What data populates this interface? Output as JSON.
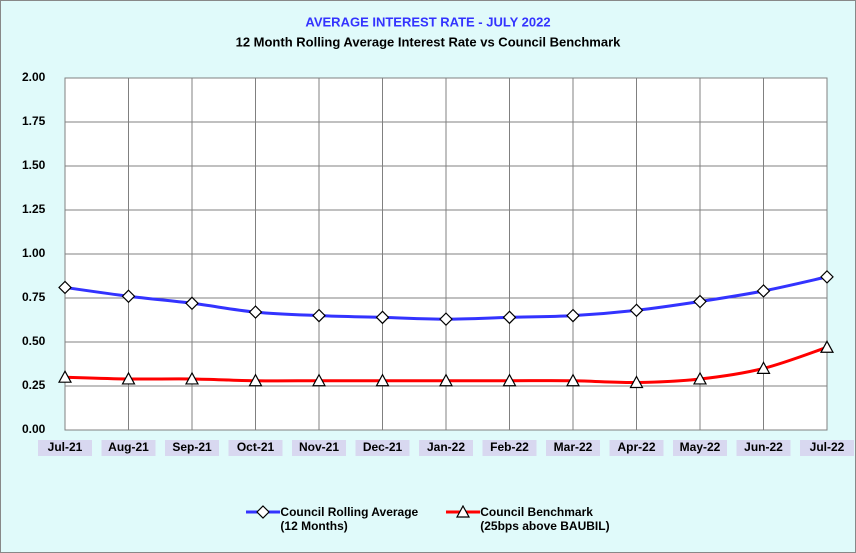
{
  "chart_data": {
    "type": "line",
    "title": "AVERAGE INTEREST  RATE - JULY 2022",
    "subtitle": "12 Month Rolling Average Interest Rate vs Council Benchmark",
    "categories": [
      "Jul-21",
      "Aug-21",
      "Sep-21",
      "Oct-21",
      "Nov-21",
      "Dec-21",
      "Jan-22",
      "Feb-22",
      "Mar-22",
      "Apr-22",
      "May-22",
      "Jun-22",
      "Jul-22"
    ],
    "series": [
      {
        "name": "Council Rolling Average\n(12 Months)",
        "color": "#3333ff",
        "marker": "diamond",
        "values": [
          0.81,
          0.76,
          0.72,
          0.67,
          0.65,
          0.64,
          0.63,
          0.64,
          0.65,
          0.68,
          0.73,
          0.79,
          0.87
        ]
      },
      {
        "name": "Council Benchmark\n(25bps above BAUBIL)",
        "color": "#ff0000",
        "marker": "triangle",
        "values": [
          0.3,
          0.29,
          0.29,
          0.28,
          0.28,
          0.28,
          0.28,
          0.28,
          0.28,
          0.27,
          0.29,
          0.35,
          0.47
        ]
      }
    ],
    "ylim": [
      0,
      2
    ],
    "yticks": [
      {
        "value": 0,
        "label": "0.00"
      },
      {
        "value": 0.25,
        "label": "0.25"
      },
      {
        "value": 0.5,
        "label": "0.50"
      },
      {
        "value": 0.75,
        "label": "0.75"
      },
      {
        "value": 1,
        "label": "1.00"
      },
      {
        "value": 1.25,
        "label": "1.25"
      },
      {
        "value": 1.5,
        "label": "1.50"
      },
      {
        "value": 1.75,
        "label": "1.75"
      },
      {
        "value": 2,
        "label": "2.00"
      }
    ],
    "grid": true,
    "legend": "bottom"
  }
}
